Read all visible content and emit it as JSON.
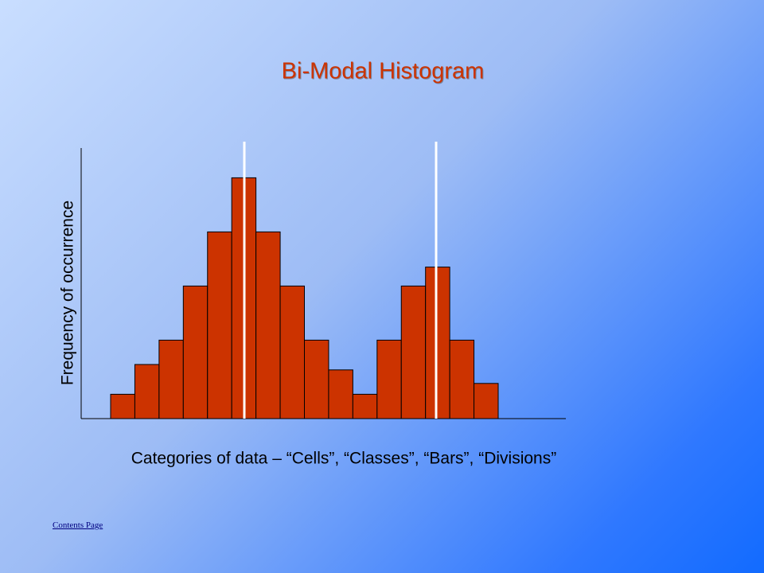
{
  "chart_data": {
    "type": "bar",
    "title": "Bi-Modal Histogram",
    "y_label": "Frequency of occurrence",
    "x_label": "Categories of data – “Cells”, “Classes”, “Bars”, “Divisions”",
    "categories": [
      null,
      null,
      null,
      null,
      null,
      null,
      null,
      null,
      null,
      null,
      null,
      null,
      null,
      null,
      null,
      null
    ],
    "values": [
      0.9,
      2,
      2.9,
      4.9,
      6.9,
      8.9,
      6.9,
      4.9,
      2.9,
      1.8,
      0.9,
      2.9,
      4.9,
      5.6,
      2.9,
      1.3
    ],
    "color": "#cc3300",
    "ylim": [
      0,
      10
    ]
  },
  "link": "Contents Page"
}
